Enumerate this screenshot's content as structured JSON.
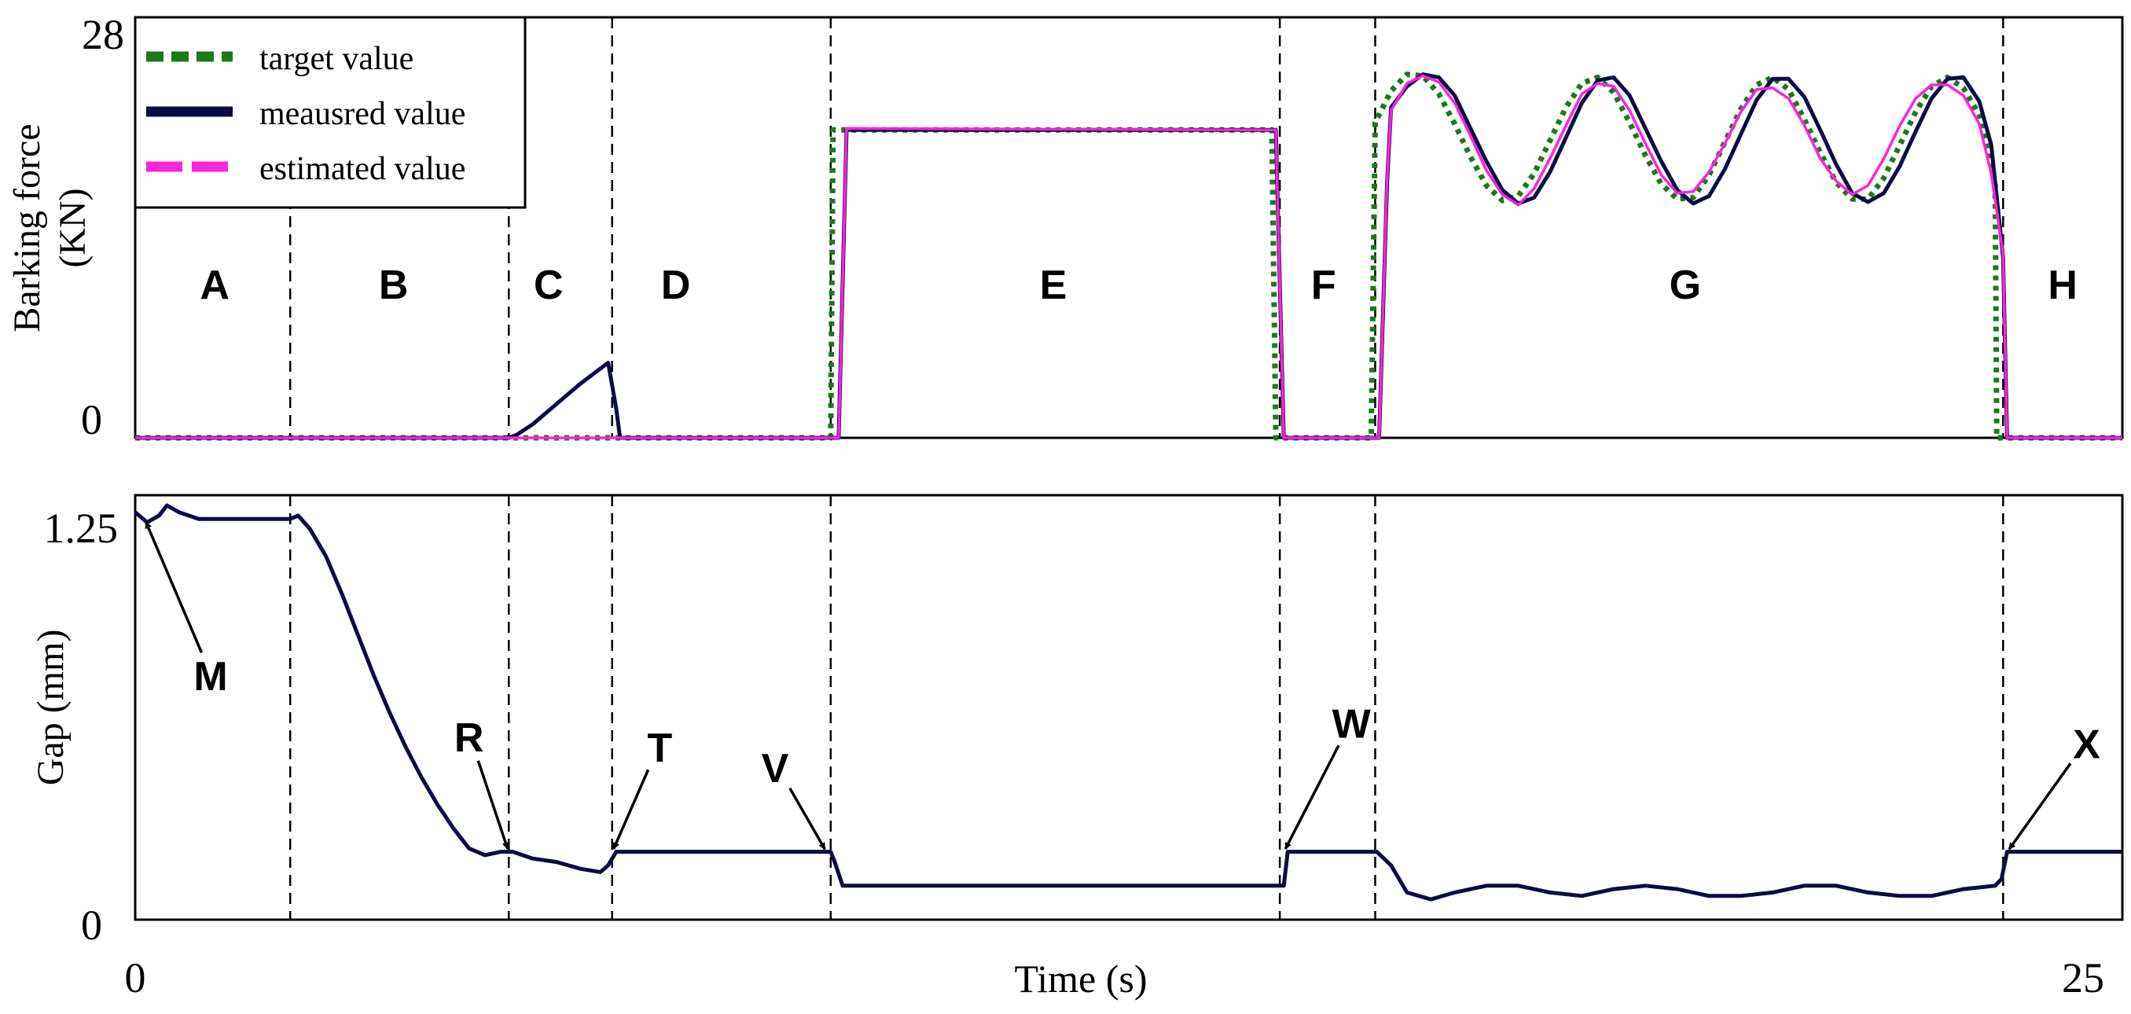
{
  "chart_data": [
    {
      "type": "line",
      "ylabel": [
        "Barking force",
        "(KN)"
      ],
      "xlim": [
        0,
        25
      ],
      "ylim": [
        0,
        28
      ],
      "ytick_labels": [
        "28",
        "0"
      ],
      "grid": false,
      "legend_position": "top-left",
      "phase_boundaries": [
        1.95,
        4.7,
        6.0,
        8.75,
        14.4,
        15.6,
        23.5
      ],
      "phase_labels": [
        {
          "label": "A",
          "x": 1.0
        },
        {
          "label": "B",
          "x": 3.25
        },
        {
          "label": "C",
          "x": 5.2
        },
        {
          "label": "D",
          "x": 6.8
        },
        {
          "label": "E",
          "x": 11.55
        },
        {
          "label": "F",
          "x": 14.95
        },
        {
          "label": "G",
          "x": 19.5
        },
        {
          "label": "H",
          "x": 24.25
        }
      ],
      "series": [
        {
          "name": "target value",
          "color": "#1a7a1a",
          "style": "dotted",
          "x": [
            0,
            8.75,
            8.78,
            14.3,
            14.35,
            15.55,
            15.6,
            15.8,
            16.0,
            16.2,
            16.4,
            16.6,
            16.8,
            17.0,
            17.2,
            17.4,
            17.6,
            17.8,
            18.0,
            18.2,
            18.4,
            18.6,
            18.8,
            19.0,
            19.2,
            19.4,
            19.6,
            19.8,
            20.0,
            20.2,
            20.4,
            20.6,
            20.8,
            21.0,
            21.2,
            21.4,
            21.6,
            21.8,
            22.0,
            22.2,
            22.4,
            22.6,
            22.8,
            23.0,
            23.2,
            23.4,
            23.42,
            25
          ],
          "y": [
            0,
            0,
            20.5,
            20.5,
            0,
            0,
            21.0,
            23.1,
            24.2,
            24.1,
            22.9,
            20.9,
            18.7,
            16.8,
            15.8,
            16.1,
            17.6,
            19.8,
            22.0,
            23.6,
            24.0,
            23.0,
            21.0,
            18.8,
            16.9,
            15.9,
            16.0,
            17.5,
            19.7,
            21.9,
            23.5,
            24.0,
            23.2,
            21.2,
            19.0,
            17.0,
            15.9,
            15.9,
            17.3,
            19.5,
            21.7,
            23.4,
            24.0,
            23.3,
            21.5,
            17.0,
            0,
            0
          ]
        },
        {
          "name": "meausred value",
          "color": "#0b0b45",
          "style": "solid",
          "x": [
            0,
            4.7,
            4.8,
            5.0,
            5.2,
            5.4,
            5.6,
            5.8,
            5.95,
            6.05,
            6.1,
            8.85,
            8.95,
            14.35,
            14.45,
            15.65,
            15.75,
            15.8,
            16.0,
            16.2,
            16.4,
            16.6,
            16.8,
            17.0,
            17.2,
            17.4,
            17.6,
            17.8,
            18.0,
            18.2,
            18.4,
            18.6,
            18.8,
            19.0,
            19.2,
            19.4,
            19.6,
            19.8,
            20.0,
            20.2,
            20.4,
            20.6,
            20.8,
            21.0,
            21.2,
            21.4,
            21.6,
            21.8,
            22.0,
            22.2,
            22.4,
            22.6,
            22.8,
            23.0,
            23.2,
            23.35,
            23.5,
            23.55,
            25
          ],
          "y": [
            0,
            0,
            0.2,
            0.9,
            1.8,
            2.7,
            3.6,
            4.4,
            5.0,
            2.0,
            0,
            0,
            20.5,
            20.5,
            0,
            0,
            17.0,
            22.0,
            23.4,
            24.2,
            24.0,
            22.8,
            20.6,
            18.4,
            16.5,
            15.6,
            16.0,
            17.7,
            20.0,
            22.3,
            23.8,
            24.0,
            22.8,
            20.6,
            18.4,
            16.5,
            15.6,
            16.1,
            17.9,
            20.2,
            22.5,
            23.9,
            23.9,
            22.7,
            20.5,
            18.2,
            16.3,
            15.7,
            16.3,
            18.1,
            20.4,
            22.6,
            23.9,
            24.0,
            22.4,
            19.5,
            12.0,
            0,
            0
          ]
        },
        {
          "name": "estimated value",
          "color": "#ff22dd",
          "style": "dashed",
          "x": [
            0,
            8.85,
            8.95,
            14.35,
            14.45,
            15.65,
            15.75,
            15.8,
            16.0,
            16.2,
            16.4,
            16.6,
            16.8,
            17.0,
            17.2,
            17.4,
            17.6,
            17.8,
            18.0,
            18.2,
            18.4,
            18.6,
            18.8,
            19.0,
            19.2,
            19.4,
            19.6,
            19.8,
            20.0,
            20.2,
            20.4,
            20.6,
            20.8,
            21.0,
            21.2,
            21.4,
            21.6,
            21.8,
            22.0,
            22.2,
            22.4,
            22.6,
            22.8,
            23.0,
            23.2,
            23.35,
            23.5,
            23.55,
            25
          ],
          "y": [
            0,
            0,
            20.6,
            20.5,
            0,
            0,
            17.2,
            21.8,
            23.6,
            24.1,
            23.7,
            22.3,
            20.1,
            17.8,
            16.2,
            15.5,
            16.6,
            18.6,
            20.8,
            22.9,
            23.6,
            23.4,
            21.8,
            19.6,
            17.5,
            16.3,
            16.4,
            17.7,
            19.6,
            21.7,
            23.2,
            23.3,
            22.6,
            20.8,
            18.6,
            17.1,
            16.2,
            16.8,
            18.6,
            20.8,
            22.6,
            23.5,
            23.5,
            22.8,
            20.9,
            17.6,
            12.2,
            0,
            0
          ]
        }
      ],
      "legend": [
        "target value",
        "meausred value",
        "estimated value"
      ]
    },
    {
      "type": "line",
      "xlabel": "Time (s)",
      "ylabel": "Gap (mm)",
      "xlim": [
        0,
        25
      ],
      "ylim": [
        0,
        1.25
      ],
      "ytick_labels": [
        "1.25",
        "0"
      ],
      "xtick_labels": [
        "0",
        "25"
      ],
      "grid": false,
      "phase_boundaries": [
        1.95,
        4.7,
        6.0,
        8.75,
        14.4,
        15.6,
        23.5
      ],
      "series": [
        {
          "name": "gap",
          "color": "#0b0b45",
          "style": "solid",
          "x": [
            0,
            0.15,
            0.3,
            0.4,
            0.55,
            0.8,
            1.0,
            1.3,
            1.6,
            1.95,
            2.05,
            2.2,
            2.4,
            2.6,
            2.8,
            3.0,
            3.2,
            3.4,
            3.6,
            3.8,
            4.0,
            4.2,
            4.4,
            4.6,
            4.75,
            5.0,
            5.3,
            5.6,
            5.85,
            5.95,
            6.05,
            6.5,
            7.0,
            7.5,
            8.0,
            8.5,
            8.75,
            8.8,
            8.9,
            9.5,
            10.0,
            11.0,
            12.0,
            13.0,
            14.0,
            14.35,
            14.45,
            14.5,
            15.0,
            15.55,
            15.62,
            15.8,
            16.0,
            16.3,
            16.6,
            17.0,
            17.4,
            17.8,
            18.2,
            18.6,
            19.0,
            19.4,
            19.8,
            20.2,
            20.6,
            21.0,
            21.4,
            21.8,
            22.2,
            22.6,
            23.0,
            23.4,
            23.48,
            23.55,
            24.0,
            24.5,
            25
          ],
          "y": [
            1.2,
            1.17,
            1.19,
            1.22,
            1.2,
            1.18,
            1.18,
            1.18,
            1.18,
            1.18,
            1.19,
            1.15,
            1.07,
            0.96,
            0.84,
            0.72,
            0.61,
            0.51,
            0.42,
            0.34,
            0.27,
            0.21,
            0.19,
            0.2,
            0.2,
            0.18,
            0.17,
            0.15,
            0.14,
            0.16,
            0.2,
            0.2,
            0.2,
            0.2,
            0.2,
            0.2,
            0.2,
            0.17,
            0.1,
            0.1,
            0.1,
            0.1,
            0.1,
            0.1,
            0.1,
            0.1,
            0.1,
            0.2,
            0.2,
            0.2,
            0.2,
            0.16,
            0.08,
            0.06,
            0.08,
            0.1,
            0.1,
            0.08,
            0.07,
            0.09,
            0.1,
            0.09,
            0.07,
            0.07,
            0.08,
            0.1,
            0.1,
            0.08,
            0.07,
            0.07,
            0.09,
            0.1,
            0.12,
            0.2,
            0.2,
            0.2,
            0.2
          ]
        }
      ],
      "annotations": [
        {
          "label": "M",
          "x": 0.12,
          "y": 1.18,
          "text_x": 0.95,
          "text_y": 0.68
        },
        {
          "label": "R",
          "x": 4.7,
          "y": 0.2,
          "text_x": 4.2,
          "text_y": 0.5
        },
        {
          "label": "T",
          "x": 6.0,
          "y": 0.2,
          "text_x": 6.6,
          "text_y": 0.47
        },
        {
          "label": "V",
          "x": 8.7,
          "y": 0.2,
          "text_x": 8.05,
          "text_y": 0.41
        },
        {
          "label": "W",
          "x": 14.45,
          "y": 0.2,
          "text_x": 15.3,
          "text_y": 0.54
        },
        {
          "label": "X",
          "x": 23.55,
          "y": 0.2,
          "text_x": 24.55,
          "text_y": 0.48
        }
      ]
    }
  ]
}
